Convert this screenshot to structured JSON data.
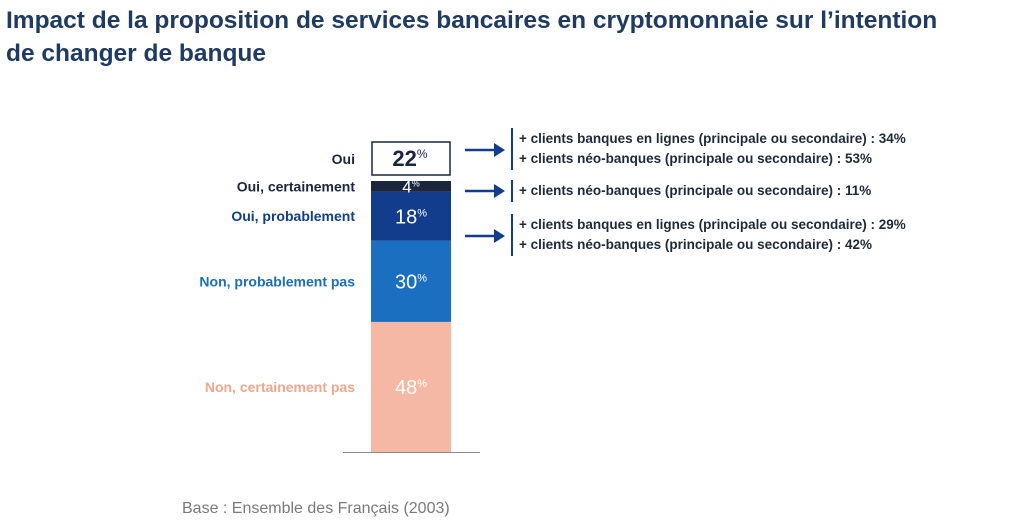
{
  "title_line1": "Impact de la proposition de services bancaires en cryptomonnaie sur l’intention",
  "title_line2": "de changer de banque",
  "base_note": "Base : Ensemble des Français (2003)",
  "chart_data": {
    "type": "bar",
    "stacked": true,
    "unit": "%",
    "categories": [
      "Non, certainement pas",
      "Non, probablement pas",
      "Oui, probablement",
      "Oui, certainement"
    ],
    "values": [
      48,
      30,
      18,
      4
    ],
    "colors": [
      "#f5b8a5",
      "#1a6fc0",
      "#123d8c",
      "#1a2540"
    ],
    "label_colors": [
      "#f2a68c",
      "#1a6fc0",
      "#123d8c",
      "#1a2540"
    ],
    "total_label": "Oui",
    "total_value": 22,
    "annotations": [
      {
        "group": "Oui",
        "lines": [
          "+ clients banques en lignes (principale ou secondaire) : 34%",
          "+ clients néo-banques (principale ou secondaire) : 53%"
        ]
      },
      {
        "group": "Oui, certainement",
        "lines": [
          "+ clients néo-banques (principale ou secondaire) : 11%"
        ]
      },
      {
        "group": "Oui, probablement",
        "lines": [
          "+ clients banques en lignes (principale ou secondaire) : 29%",
          "+ clients néo-banques (principale ou secondaire) : 42%"
        ]
      }
    ]
  }
}
